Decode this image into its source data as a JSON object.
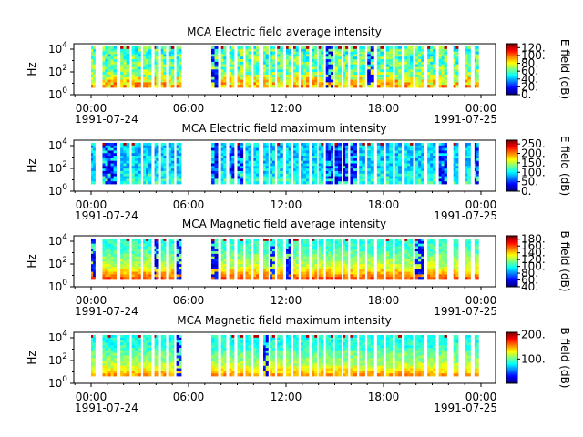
{
  "figure": {
    "xtick_labels": [
      "00:00",
      "06:00",
      "12:00",
      "18:00",
      "00:00"
    ],
    "date_start": "1991-07-24",
    "date_end": "1991-07-25"
  },
  "chart_data": [
    {
      "type": "heatmap",
      "title": "MCA  Electric field average intensity",
      "ylabel": "Hz",
      "y_scale": "log",
      "y_tick_labels": [
        "10^0",
        "10^2",
        "10^4"
      ],
      "colorbar_label": "E field (dB)",
      "colorbar_ticks": [
        "0.",
        "20.",
        "40.",
        "60.",
        "80.",
        "100.",
        "120."
      ],
      "colorbar_range": [
        0,
        130
      ],
      "colormap": "jet"
    },
    {
      "type": "heatmap",
      "title": "MCA  Electric field maximum intensity",
      "ylabel": "Hz",
      "y_scale": "log",
      "y_tick_labels": [
        "10^0",
        "10^2",
        "10^4"
      ],
      "colorbar_label": "E field (dB)",
      "colorbar_ticks": [
        "0.",
        "50.",
        "100.",
        "150.",
        "200.",
        "250."
      ],
      "colorbar_range": [
        0,
        270
      ],
      "colormap": "jet"
    },
    {
      "type": "heatmap",
      "title": "MCA  Magnetic field average intensity",
      "ylabel": "Hz",
      "y_scale": "log",
      "y_tick_labels": [
        "10^0",
        "10^2",
        "10^4"
      ],
      "colorbar_label": "B field (dB)",
      "colorbar_ticks": [
        "40.",
        "60.",
        "80.",
        "100.",
        "120.",
        "140.",
        "160.",
        "180."
      ],
      "colorbar_range": [
        40,
        190
      ],
      "colormap": "jet"
    },
    {
      "type": "heatmap",
      "title": "MCA  Magnetic field maximum intensity",
      "ylabel": "Hz",
      "y_scale": "log",
      "y_tick_labels": [
        "10^0",
        "10^2",
        "10^4"
      ],
      "colorbar_label": "B field (dB)",
      "colorbar_ticks": [
        "100.",
        "200."
      ],
      "colorbar_range": [
        0,
        210
      ],
      "colormap": "jet"
    }
  ]
}
